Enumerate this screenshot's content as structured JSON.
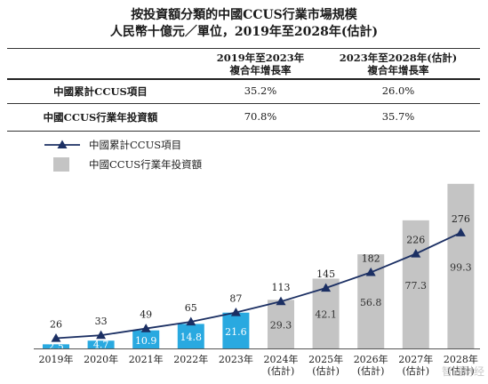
{
  "title_line1": "按投資額分類的中國CCUS行業市場規模",
  "title_line2": "人民幣十億元／單位，2019年至2028年(估計)",
  "table": {
    "col1_line1": "2019年至2023年",
    "col1_line2": "複合年增長率",
    "col2_line1": "2023年至2028年(估計)",
    "col2_line2": "複合年增長率",
    "rows": [
      {
        "label": "中國累計CCUS項目",
        "v1": "35.2%",
        "v2": "26.0%"
      },
      {
        "label": "中國CCUS行業年投資額",
        "v1": "70.8%",
        "v2": "35.7%"
      }
    ]
  },
  "watermark": "智通财经",
  "chart_data": {
    "type": "bar",
    "categories": [
      "2019年",
      "2020年",
      "2021年",
      "2022年",
      "2023年",
      "2024年\n(估計)",
      "2025年\n(估計)",
      "2026年\n(估計)",
      "2027年\n(估計)",
      "2028年\n(估計)"
    ],
    "series": [
      {
        "name": "中國CCUS行業年投資額",
        "type": "bar",
        "values": [
          2.5,
          4.7,
          10.9,
          14.8,
          21.6,
          29.3,
          42.1,
          56.8,
          77.3,
          99.3
        ]
      },
      {
        "name": "中國累計CCUS項目",
        "type": "line",
        "values": [
          26,
          33,
          49,
          65,
          87,
          113,
          145,
          182,
          226,
          276
        ]
      }
    ],
    "colors": {
      "bar_actual": "#29a9e0",
      "bar_forecast": "#c4c4c4",
      "line": "#1b2f63",
      "bar_label_dark": "#333333",
      "bar_label_light": "#ffffff"
    },
    "forecast_from_index": 5,
    "legend_position": "top-left",
    "grid": false
  }
}
